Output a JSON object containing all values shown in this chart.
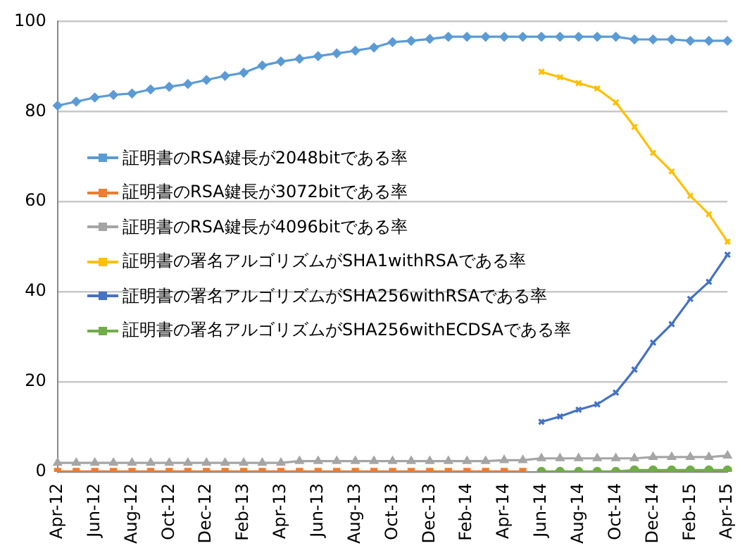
{
  "chart_data": {
    "type": "line",
    "categories": [
      "Apr-12",
      null,
      "Jun-12",
      null,
      "Aug-12",
      null,
      "Oct-12",
      null,
      "Dec-12",
      null,
      "Feb-13",
      null,
      "Apr-13",
      null,
      "Jun-13",
      null,
      "Aug-13",
      null,
      "Oct-13",
      null,
      "Dec-13",
      null,
      "Feb-14",
      null,
      "Apr-14",
      null,
      "Jun-14",
      null,
      "Aug-14",
      null,
      "Oct-14",
      null,
      "Dec-14",
      null,
      "Feb-15",
      null,
      "Apr-15"
    ],
    "series": [
      {
        "name": "証明書のRSA鍵長が2048bitである率",
        "color": "#5b9bd5",
        "marker": "diamond",
        "values": [
          81.3,
          82.2,
          83.1,
          83.7,
          84.0,
          84.9,
          85.5,
          86.1,
          87.0,
          87.9,
          88.6,
          90.2,
          91.1,
          91.7,
          92.3,
          92.9,
          93.5,
          94.2,
          95.4,
          95.7,
          96.1,
          96.6,
          96.6,
          96.6,
          96.6,
          96.6,
          96.6,
          96.6,
          96.6,
          96.6,
          96.6,
          96.0,
          96.0,
          96.0,
          95.7,
          95.7,
          95.7
        ]
      },
      {
        "name": "証明書のRSA鍵長が3072bitである率",
        "color": "#ed7d31",
        "marker": "square",
        "values": [
          0.1,
          0.1,
          0.1,
          0.1,
          0.1,
          0.1,
          0.1,
          0.1,
          0.1,
          0.1,
          0.1,
          0.1,
          0.1,
          0.1,
          0.1,
          0.1,
          0.1,
          0.1,
          0.1,
          0.1,
          0.1,
          0.1,
          0.1,
          0.1,
          0.1,
          0.1,
          null,
          null,
          null,
          null,
          null,
          null,
          null,
          null,
          null,
          null,
          null
        ]
      },
      {
        "name": "証明書のRSA鍵長が4096bitである率",
        "color": "#a5a5a5",
        "marker": "triangle",
        "values": [
          2.0,
          2.0,
          2.0,
          2.0,
          2.0,
          2.0,
          2.0,
          2.0,
          2.0,
          2.0,
          2.0,
          2.0,
          2.0,
          2.4,
          2.4,
          2.4,
          2.4,
          2.4,
          2.4,
          2.4,
          2.4,
          2.4,
          2.4,
          2.4,
          2.6,
          2.6,
          3.0,
          3.0,
          3.0,
          3.0,
          3.0,
          3.0,
          3.3,
          3.3,
          3.3,
          3.3,
          3.6
        ]
      },
      {
        "name": "証明書の署名アルゴリズムがSHA1withRSAである率",
        "color": "#ffc000",
        "marker": "cross",
        "values": [
          null,
          null,
          null,
          null,
          null,
          null,
          null,
          null,
          null,
          null,
          null,
          null,
          null,
          null,
          null,
          null,
          null,
          null,
          null,
          null,
          null,
          null,
          null,
          null,
          null,
          null,
          88.8,
          87.6,
          86.3,
          85.1,
          82.0,
          76.6,
          70.8,
          66.7,
          61.3,
          57.2,
          51.1
        ]
      },
      {
        "name": "証明書の署名アルゴリズムがSHA256withRSAである率",
        "color": "#4472c4",
        "marker": "cross",
        "values": [
          null,
          null,
          null,
          null,
          null,
          null,
          null,
          null,
          null,
          null,
          null,
          null,
          null,
          null,
          null,
          null,
          null,
          null,
          null,
          null,
          null,
          null,
          null,
          null,
          null,
          null,
          11.1,
          12.3,
          13.8,
          15.0,
          17.6,
          22.7,
          28.7,
          32.8,
          38.4,
          42.2,
          48.2
        ]
      },
      {
        "name": "証明書の署名アルゴリズムがSHA256withECDSAである率",
        "color": "#70ad47",
        "marker": "circle",
        "values": [
          null,
          null,
          null,
          null,
          null,
          null,
          null,
          null,
          null,
          null,
          null,
          null,
          null,
          null,
          null,
          null,
          null,
          null,
          null,
          null,
          null,
          null,
          null,
          null,
          null,
          null,
          0.1,
          0.1,
          0.1,
          0.1,
          0.1,
          0.4,
          0.4,
          0.4,
          0.4,
          0.4,
          0.4
        ]
      }
    ],
    "ylim": [
      0,
      100
    ],
    "yticks": [
      0,
      20,
      40,
      60,
      80,
      100
    ],
    "grid": "y",
    "legend": "left",
    "line_style": "solid"
  }
}
